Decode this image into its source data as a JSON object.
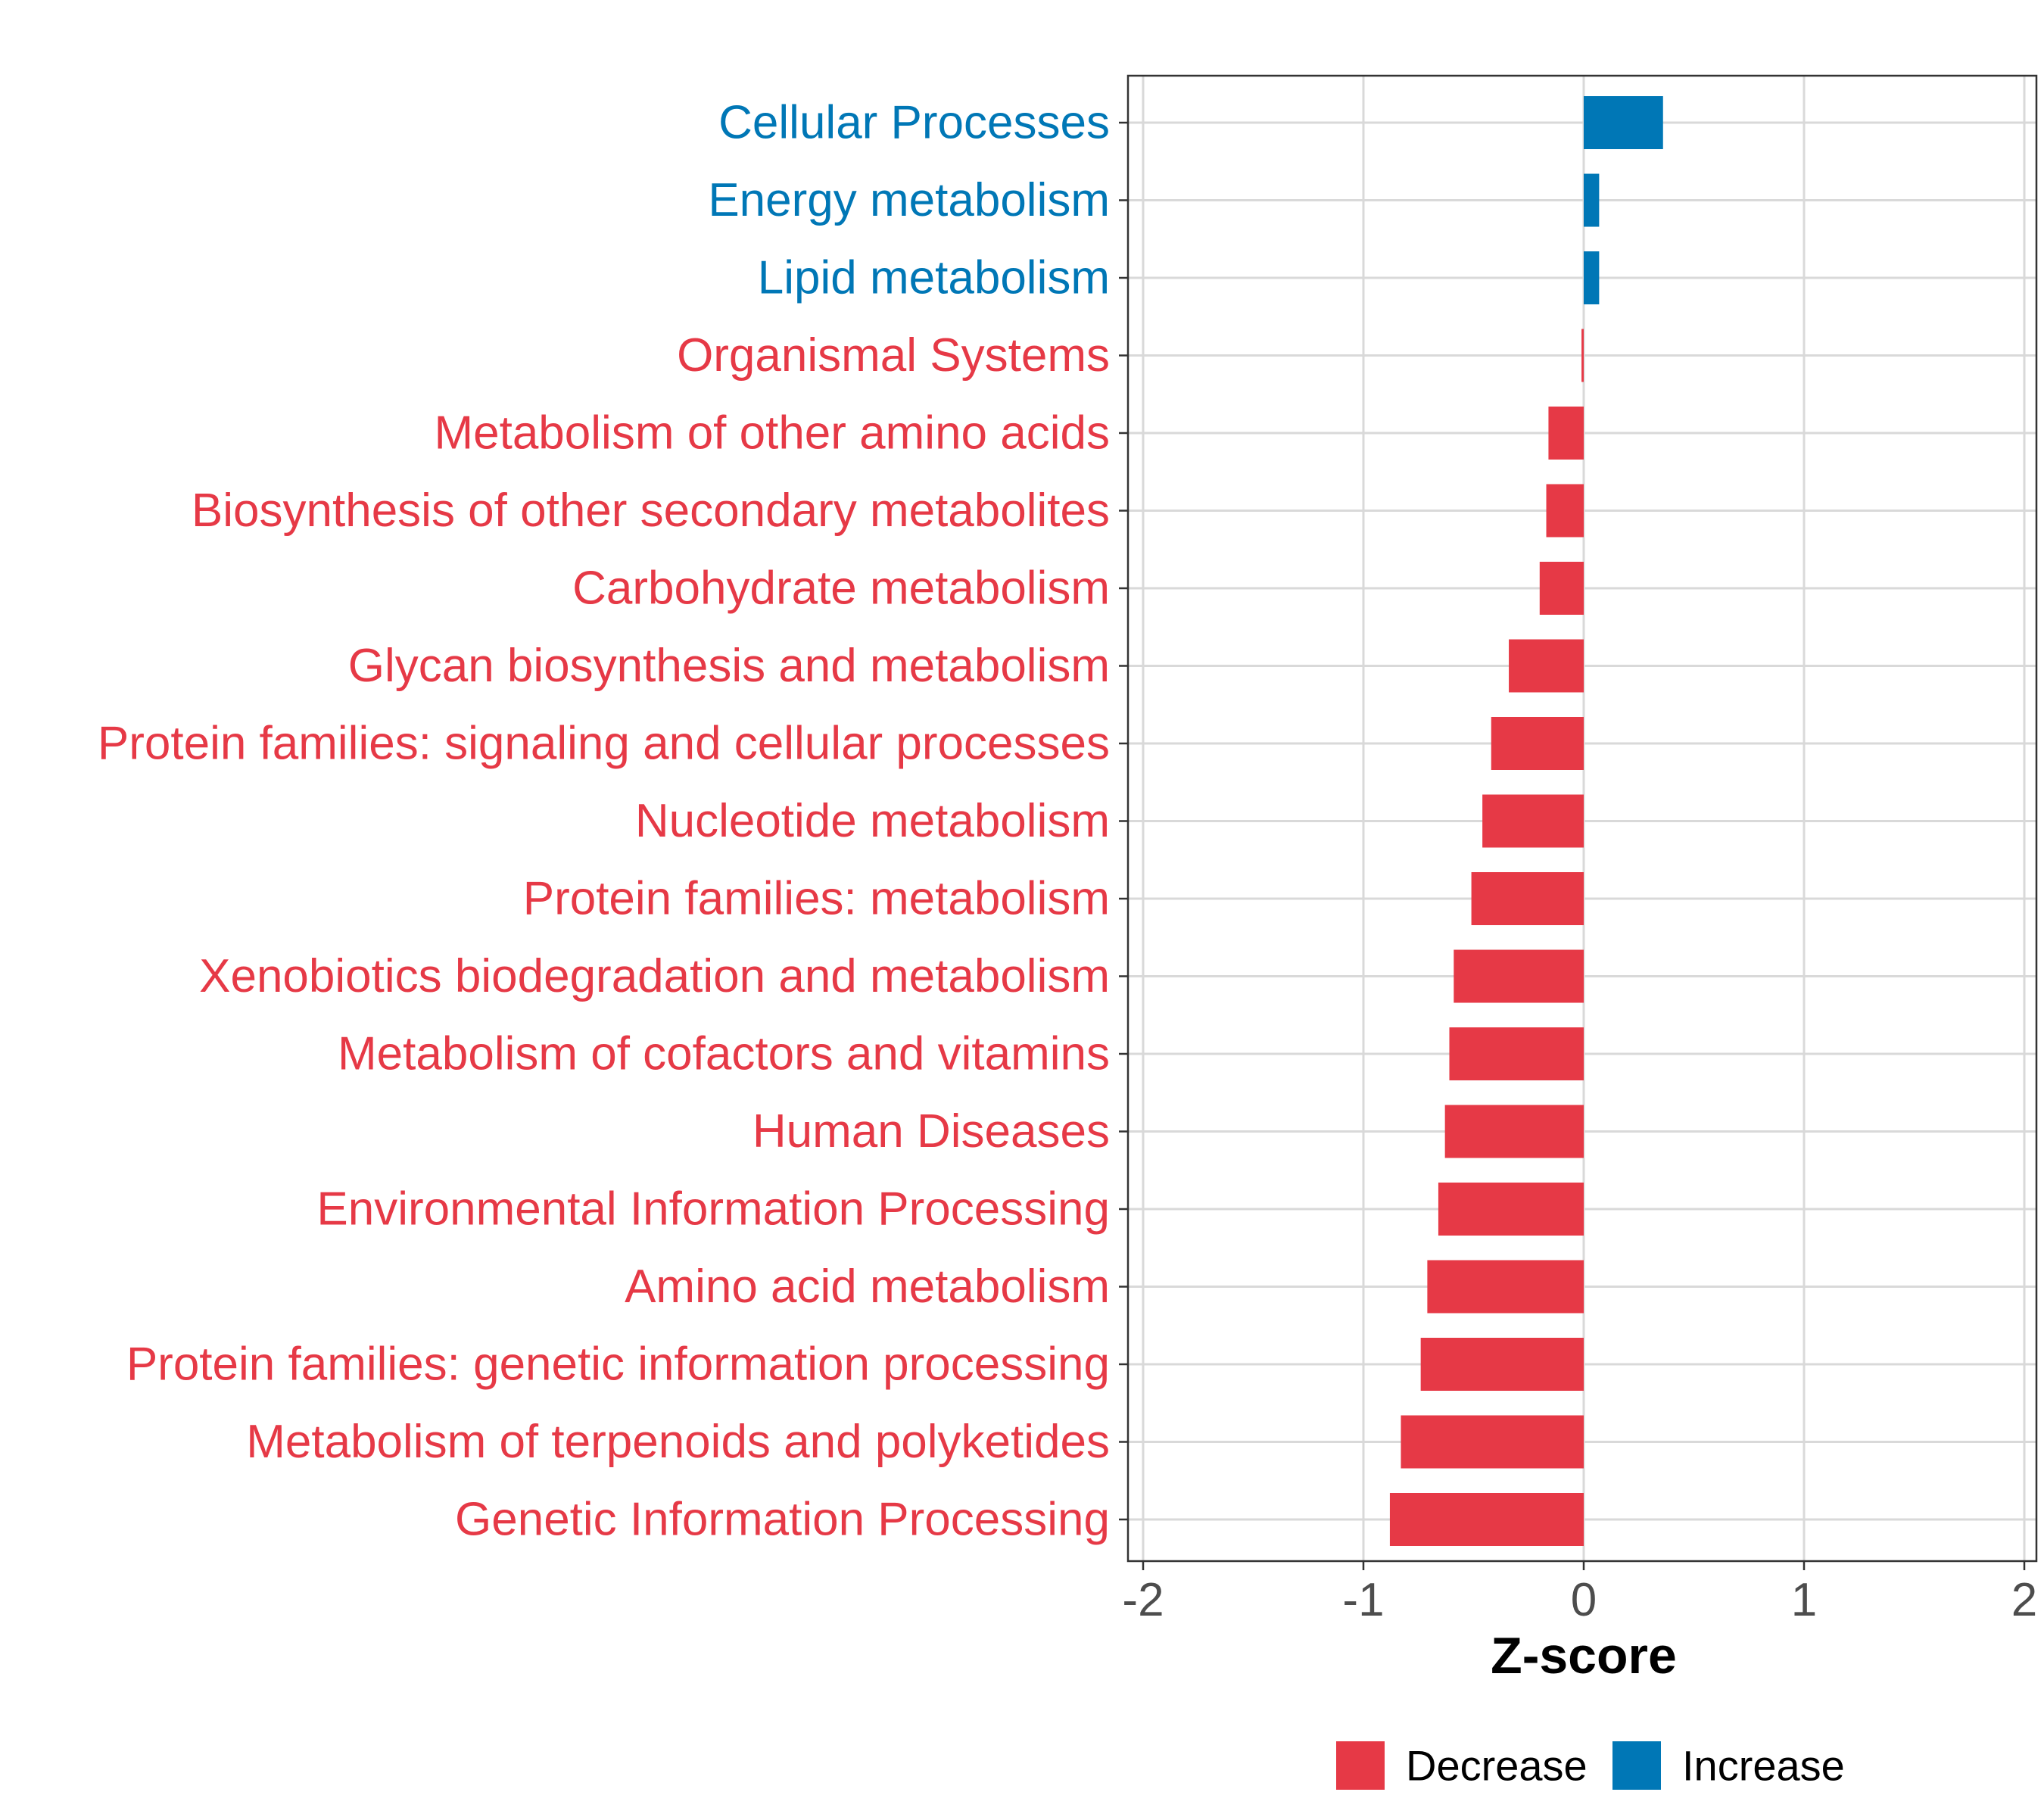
{
  "chart_data": {
    "type": "bar",
    "orientation": "horizontal",
    "xlabel": "Z-score",
    "ylabel": "",
    "xlim": [
      -2,
      2
    ],
    "xticks": [
      -2,
      -1,
      0,
      1,
      2
    ],
    "xtick_labels": [
      "-2",
      "-1",
      "0",
      "1",
      "2"
    ],
    "grid": true,
    "legend_position": "bottom",
    "colors": {
      "Decrease": "#e63946",
      "Increase": "#0077b6"
    },
    "legend": [
      {
        "label": "Decrease",
        "color": "#e63946"
      },
      {
        "label": "Increase",
        "color": "#0077b6"
      }
    ],
    "categories": [
      "Cellular Processes",
      "Energy metabolism",
      "Lipid metabolism",
      "Organismal Systems",
      "Metabolism of other amino acids",
      "Biosynthesis of other secondary metabolites",
      "Carbohydrate metabolism",
      "Glycan biosynthesis and metabolism",
      "Protein families: signaling and cellular processes",
      "Nucleotide metabolism",
      "Protein families: metabolism",
      "Xenobiotics biodegradation and metabolism",
      "Metabolism of cofactors and vitamins",
      "Human Diseases",
      "Environmental Information Processing",
      "Amino acid metabolism",
      "Protein families: genetic information processing",
      "Metabolism of terpenoids and polyketides",
      "Genetic Information Processing"
    ],
    "values": [
      0.36,
      0.07,
      0.07,
      -0.01,
      -0.16,
      -0.17,
      -0.2,
      -0.34,
      -0.42,
      -0.46,
      -0.51,
      -0.59,
      -0.61,
      -0.63,
      -0.66,
      -0.71,
      -0.74,
      -0.83,
      -0.88
    ],
    "direction": [
      "Increase",
      "Increase",
      "Increase",
      "Decrease",
      "Decrease",
      "Decrease",
      "Decrease",
      "Decrease",
      "Decrease",
      "Decrease",
      "Decrease",
      "Decrease",
      "Decrease",
      "Decrease",
      "Decrease",
      "Decrease",
      "Decrease",
      "Decrease",
      "Decrease"
    ]
  }
}
